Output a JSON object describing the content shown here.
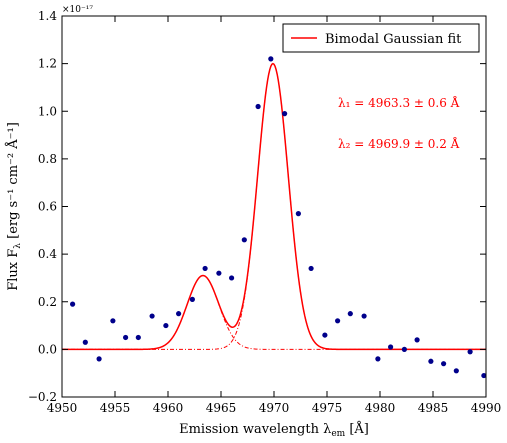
{
  "chart_data": {
    "type": "scatter",
    "xlabel": "Emission wavelength λ",
    "xlabel_sub": "em",
    "xlabel_unit": " [Å]",
    "ylabel": "Flux F",
    "ylabel_sub": "λ",
    "ylabel_unit": " [erg s⁻¹ cm⁻² Å⁻¹]",
    "y_exponent": "×10⁻¹⁷",
    "xlim": [
      4950,
      4990
    ],
    "ylim": [
      -0.2,
      1.4
    ],
    "xticks": [
      "4950",
      "4955",
      "4960",
      "4965",
      "4970",
      "4975",
      "4980",
      "4985",
      "4990"
    ],
    "yticks": [
      "−0.2",
      "0.0",
      "0.2",
      "0.4",
      "0.6",
      "0.8",
      "1.0",
      "1.2",
      "1.4"
    ],
    "legend": {
      "label": "Bimodal Gaussian fit",
      "placement": "top-right"
    },
    "annotations": [
      "λ₁ = 4963.3 ± 0.6 Å",
      "λ₂ = 4969.9 ± 0.2 Å"
    ],
    "colors": {
      "fit": "#ff0000",
      "points": "#00008b"
    },
    "series": [
      {
        "kind": "points",
        "x": [
          4951.0,
          4952.2,
          4953.5,
          4954.8,
          4956.0,
          4957.2,
          4958.5,
          4959.8,
          4961.0,
          4962.3,
          4963.5,
          4964.8,
          4966.0,
          4967.2,
          4968.5,
          4969.7,
          4971.0,
          4972.3,
          4973.5,
          4974.8,
          4976.0,
          4977.2,
          4978.5,
          4979.8,
          4981.0,
          4982.3,
          4983.5,
          4984.8,
          4986.0,
          4987.2,
          4988.5,
          4989.8
        ],
        "y": [
          0.19,
          0.03,
          -0.04,
          0.12,
          0.05,
          0.05,
          0.14,
          0.1,
          0.15,
          0.21,
          0.34,
          0.32,
          0.3,
          0.46,
          1.02,
          1.22,
          0.99,
          0.57,
          0.34,
          0.06,
          0.12,
          0.15,
          0.14,
          -0.04,
          0.01,
          0.0,
          0.04,
          -0.05,
          -0.06,
          -0.09,
          -0.01,
          -0.11
        ]
      }
    ],
    "fit": {
      "components": [
        {
          "center": 4963.3,
          "amplitude": 0.31,
          "sigma": 1.5
        },
        {
          "center": 4969.9,
          "amplitude": 1.2,
          "sigma": 1.45
        }
      ]
    }
  }
}
